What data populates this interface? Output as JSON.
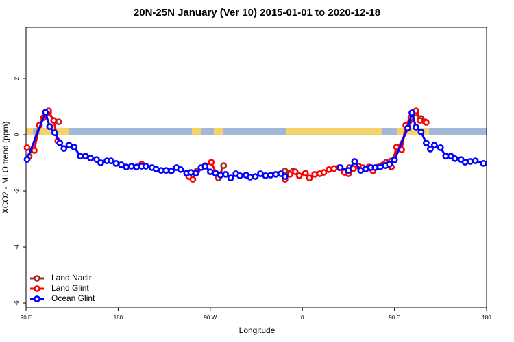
{
  "chart_data": {
    "type": "line",
    "title": "20N-25N January (Ver 10)   2015-01-01 to 2020-12-18",
    "xlabel": "Longitude",
    "ylabel": "XCO2 - MLO trend (ppm)",
    "xlim": [
      90,
      540
    ],
    "xticks": [
      {
        "value": 90,
        "label": "90 E"
      },
      180,
      {
        "value": 270,
        "label": "90 W"
      },
      {
        "value": 360,
        "label": "0"
      },
      {
        "value": 450,
        "label": "90 E"
      },
      {
        "value": 540,
        "label": "180"
      }
    ],
    "ylim": [
      -6.17,
      3.83
    ],
    "yticks": [
      2,
      0,
      -2,
      -4,
      -6
    ],
    "legend": "bottom-left",
    "series": [
      {
        "name": "Land Nadir",
        "color": "#a52a2a",
        "x": [
          93,
          103,
          112,
          117,
          122,
          null,
          278,
          283,
          null,
          343,
          351,
          null,
          406,
          null,
          442,
          447,
          471,
          476,
          480
        ],
        "values": [
          -0.78,
          0.34,
          0.8,
          0.51,
          0.46,
          null,
          -1.54,
          -1.1,
          null,
          -1.29,
          -1.29,
          null,
          -1.17,
          null,
          -0.98,
          -0.93,
          0.78,
          0.58,
          0.46
        ]
      },
      {
        "name": "Land Glint",
        "color": "#ff0000",
        "x": [
          91,
          98,
          103,
          107,
          112,
          117,
          121,
          null,
          203,
          null,
          249,
          253,
          257,
          265,
          271,
          276,
          null,
          343,
          348,
          353,
          357,
          363,
          367,
          372,
          377,
          381,
          386,
          391,
          396,
          401,
          405,
          410,
          415,
          419,
          425,
          429,
          434,
          439,
          443,
          447,
          452,
          457,
          461,
          466,
          471,
          475,
          481
        ],
        "values": [
          -0.46,
          -0.56,
          0.34,
          0.61,
          0.85,
          0.51,
          -0.22,
          null,
          -1.05,
          null,
          -1.49,
          -1.59,
          -1.29,
          -1.1,
          -0.98,
          -1.39,
          null,
          -1.59,
          -1.41,
          -1.32,
          -1.46,
          -1.37,
          -1.54,
          -1.41,
          -1.39,
          -1.34,
          -1.24,
          -1.2,
          -1.17,
          -1.34,
          -1.39,
          -1.2,
          -1.12,
          -1.17,
          -1.15,
          -1.29,
          -1.15,
          -1.07,
          -1.07,
          -1.15,
          -0.44,
          -0.54,
          0.34,
          0.61,
          0.85,
          0.51,
          0.44
        ]
      },
      {
        "name": "Ocean Glint",
        "color": "#0000ff",
        "x": [
          91,
          109,
          113,
          118,
          123,
          127,
          132,
          137,
          143,
          148,
          153,
          159,
          163,
          169,
          173,
          178,
          183,
          188,
          193,
          198,
          203,
          207,
          213,
          217,
          222,
          227,
          232,
          237,
          241,
          247,
          251,
          256,
          261,
          265,
          270,
          275,
          280,
          285,
          290,
          295,
          299,
          305,
          309,
          314,
          319,
          324,
          329,
          334,
          339,
          343,
          null,
          397,
          405,
          411,
          417,
          422,
          427,
          431,
          436,
          441,
          445,
          450,
          463,
          467,
          471,
          476,
          481,
          485,
          489,
          495,
          500,
          505,
          509,
          515,
          519,
          524,
          529,
          537
        ],
        "values": [
          -0.88,
          0.8,
          0.29,
          0.07,
          -0.29,
          -0.49,
          -0.37,
          -0.44,
          -0.76,
          -0.76,
          -0.83,
          -0.88,
          -1.0,
          -0.93,
          -0.93,
          -1.02,
          -1.07,
          -1.15,
          -1.12,
          -1.15,
          -1.12,
          -1.12,
          -1.17,
          -1.22,
          -1.27,
          -1.27,
          -1.29,
          -1.17,
          -1.24,
          -1.37,
          -1.34,
          -1.37,
          -1.17,
          -1.12,
          -1.32,
          -1.37,
          -1.44,
          -1.41,
          -1.54,
          -1.39,
          -1.46,
          -1.44,
          -1.51,
          -1.49,
          -1.39,
          -1.46,
          -1.44,
          -1.41,
          -1.39,
          -1.49,
          null,
          -1.17,
          -1.27,
          -0.95,
          -1.27,
          -1.22,
          -1.17,
          -1.17,
          -1.15,
          -1.1,
          -1.05,
          -0.9,
          0.24,
          0.78,
          0.27,
          0.1,
          -0.29,
          -0.51,
          -0.37,
          -0.46,
          -0.76,
          -0.76,
          -0.85,
          -0.88,
          -0.98,
          -0.95,
          -0.93,
          -1.02
        ]
      }
    ]
  }
}
